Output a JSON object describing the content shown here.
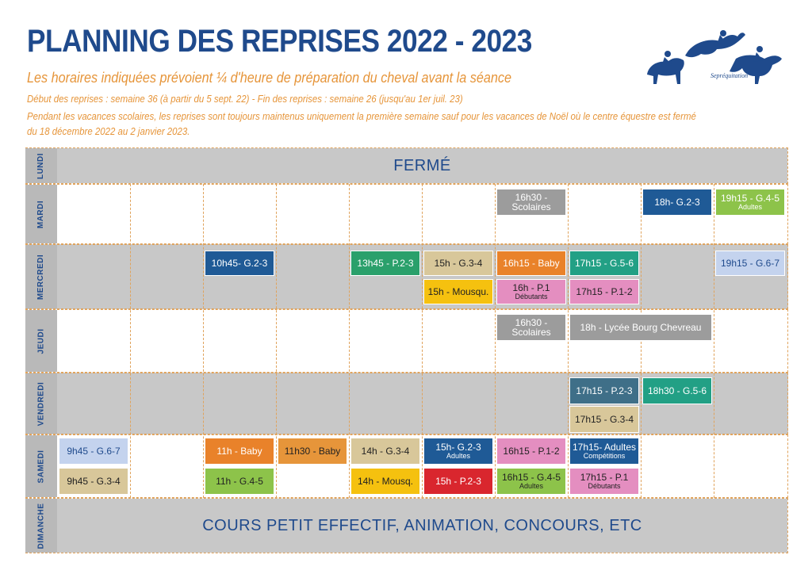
{
  "header": {
    "title": "PLANNING DES REPRISES 2022 - 2023",
    "subtitle": "Les horaires indiquées prévoient ¼ d'heure de préparation du cheval avant la séance",
    "note1": "Début des reprises : semaine 36 (à partir du 5 sept. 22) - Fin des reprises : semaine 26 (jusqu'au 1er juil. 23)",
    "note2": "Pendant les vacances scolaires, les reprises sont toujours maintenus uniquement la première semaine sauf pour les vacances de Noël où le centre équestre est fermé",
    "note3": "du 18 décembre 2022 au 2 janvier 2023.",
    "logo_text": "Sepréquitation"
  },
  "days": {
    "lundi": "LUNDI",
    "mardi": "MARDI",
    "mercredi": "MERCREDI",
    "jeudi": "JEUDI",
    "vendredi": "VENDREDI",
    "samedi": "SAMEDI",
    "dimanche": "DIMANCHE"
  },
  "lundi_text": "FERMÉ",
  "dimanche_text": "COURS PETIT EFFECTIF, ANIMATION, CONCOURS, ETC",
  "colors": {
    "blue_dark": "#1f5a96",
    "green": "#2aa06b",
    "beige": "#d8c79a",
    "orange": "#e9822a",
    "teal": "#22a085",
    "light_blue": "#c4d3ee",
    "lime": "#8dc34a",
    "grey": "#9c9c9c",
    "yellow": "#f5c10f",
    "pink": "#e48ec0",
    "red": "#d9262e",
    "slate": "#3f6f88",
    "gold": "#e6953a",
    "title_blue": "#1f4a8c"
  },
  "sessions": {
    "mardi_scolaires": "16h30 - Scolaires",
    "mardi_g23": "18h- G.2-3",
    "mardi_g45": "19h15 - G.4-5",
    "mardi_g45_sub": "Adultes",
    "mer_g23": "10h45- G.2-3",
    "mer_p23": "13h45 - P.2-3",
    "mer_g34": "15h - G.3-4",
    "mer_baby": "16h15 - Baby",
    "mer_g56": "17h15 - G.5-6",
    "mer_g67": "19h15 - G.6-7",
    "mer_mousqu": "15h - Mousqu.",
    "mer_p1": "16h - P.1",
    "mer_p1_sub": "Débutants",
    "mer_p12": "17h15 - P.1-2",
    "jeu_scolaires": "16h30 - Scolaires",
    "jeu_lycee": "18h - Lycée Bourg Chevreau",
    "ven_p23": "17h15 - P.2-3",
    "ven_g56": "18h30 - G.5-6",
    "ven_g34": "17h15 - G.3-4",
    "sam_g67": "9h45 - G.6-7",
    "sam_baby1": "11h - Baby",
    "sam_baby2": "11h30 - Baby",
    "sam_g34": "14h - G.3-4",
    "sam_g23": "15h- G.2-3",
    "sam_g23_sub": "Adultes",
    "sam_p12": "16h15 - P.1-2",
    "sam_adultes": "17h15- Adultes",
    "sam_adultes_sub": "Compétitions",
    "sam_g34b": "9h45 - G.3-4",
    "sam_g45": "11h - G.4-5",
    "sam_mousqu": "14h - Mousq.",
    "sam_p23": "15h - P.2-3",
    "sam_g45b": "16h15 - G.4-5",
    "sam_g45b_sub": "Adultes",
    "sam_p1": "17h15 - P.1",
    "sam_p1_sub": "Débutants"
  }
}
